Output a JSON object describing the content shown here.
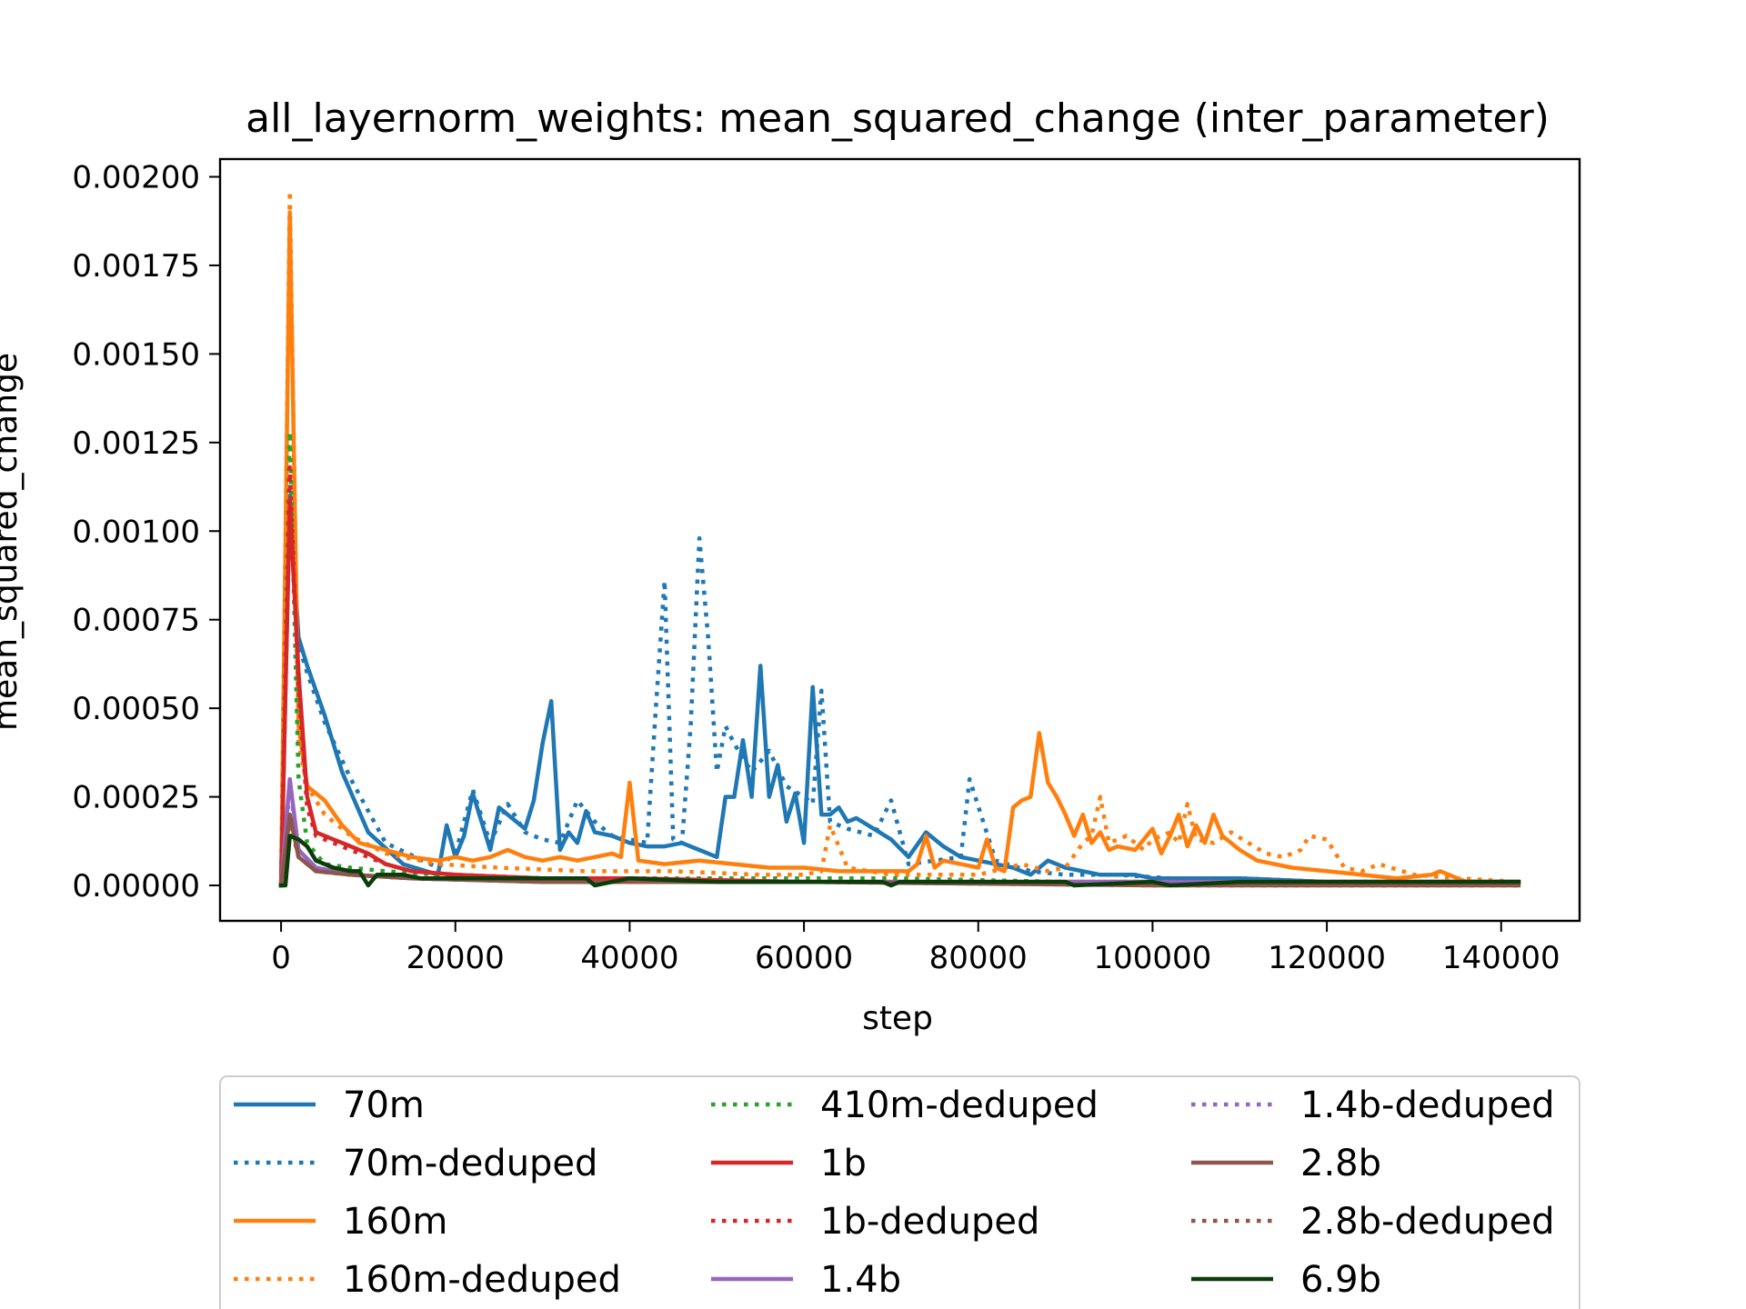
{
  "chart_data": {
    "type": "line",
    "title": "all_layernorm_weights: mean_squared_change (inter_parameter)",
    "xlabel": "step",
    "ylabel": "mean_squared_change",
    "xlim": [
      -7000,
      149000
    ],
    "ylim": [
      -0.0001,
      0.00205
    ],
    "x_ticks": [
      0,
      20000,
      40000,
      60000,
      80000,
      100000,
      120000,
      140000
    ],
    "x_tick_labels": [
      "0",
      "20000",
      "40000",
      "60000",
      "80000",
      "100000",
      "120000",
      "140000"
    ],
    "y_ticks": [
      0,
      0.00025,
      0.0005,
      0.00075,
      0.001,
      0.00125,
      0.0015,
      0.00175,
      0.002
    ],
    "y_tick_labels": [
      "0.00000",
      "0.00025",
      "0.00050",
      "0.00075",
      "0.00100",
      "0.00125",
      "0.00150",
      "0.00175",
      "0.00200"
    ],
    "grid": false,
    "legend_position": "below",
    "legend_columns": 3,
    "series": [
      {
        "name": "70m",
        "color": "#1f77b4",
        "style": "solid",
        "x": [
          0,
          1000,
          2000,
          3000,
          5000,
          7000,
          10000,
          14000,
          18000,
          19000,
          20000,
          21000,
          22000,
          23000,
          24000,
          25000,
          26000,
          28000,
          29000,
          30000,
          31000,
          32000,
          33000,
          34000,
          35000,
          36000,
          38000,
          40000,
          42000,
          44000,
          46000,
          48000,
          50000,
          51000,
          52000,
          53000,
          54000,
          55000,
          56000,
          57000,
          58000,
          59000,
          60000,
          61000,
          62000,
          63000,
          64000,
          65000,
          66000,
          68000,
          70000,
          72000,
          74000,
          76000,
          78000,
          80000,
          82000,
          84000,
          86000,
          88000,
          90000,
          92000,
          94000,
          96000,
          98000,
          100000,
          104000,
          110000,
          120000,
          130000,
          142000
        ],
        "y": [
          0.0,
          0.0011,
          0.0007,
          0.00062,
          0.00048,
          0.00032,
          0.00015,
          6e-05,
          3e-05,
          0.00017,
          8e-05,
          0.00014,
          0.00026,
          0.00018,
          0.0001,
          0.00022,
          0.0002,
          0.00016,
          0.00024,
          0.0004,
          0.00052,
          0.0001,
          0.00015,
          0.00012,
          0.00021,
          0.00015,
          0.00014,
          0.00012,
          0.00011,
          0.00011,
          0.00012,
          0.0001,
          8e-05,
          0.00025,
          0.00025,
          0.00041,
          0.00025,
          0.00062,
          0.00025,
          0.00034,
          0.00018,
          0.00026,
          0.00012,
          0.00056,
          0.0002,
          0.0002,
          0.00022,
          0.00018,
          0.00019,
          0.00016,
          0.00013,
          8e-05,
          0.00015,
          0.00011,
          8e-05,
          7e-05,
          6e-05,
          5e-05,
          3e-05,
          7e-05,
          5e-05,
          4e-05,
          3e-05,
          3e-05,
          3e-05,
          2e-05,
          2e-05,
          2e-05,
          1e-05,
          1e-05,
          1e-05
        ]
      },
      {
        "name": "70m-deduped",
        "color": "#1f77b4",
        "style": "dotted",
        "x": [
          0,
          1000,
          2000,
          3000,
          5000,
          8000,
          12000,
          18000,
          20000,
          22000,
          24000,
          26000,
          28000,
          30000,
          32000,
          34000,
          36000,
          38000,
          40000,
          42000,
          43000,
          44000,
          45000,
          46000,
          47000,
          48000,
          49000,
          50000,
          51000,
          52000,
          54000,
          56000,
          58000,
          60000,
          61000,
          62000,
          63000,
          65000,
          68000,
          70000,
          72000,
          75000,
          78000,
          79000,
          82000,
          86000,
          90000,
          96000,
          102000,
          110000,
          120000,
          130000,
          142000
        ],
        "y": [
          0.0,
          0.00115,
          0.00068,
          0.0006,
          0.00046,
          0.0003,
          0.00012,
          5e-05,
          9e-05,
          0.00027,
          0.00012,
          0.00023,
          0.00015,
          0.00013,
          0.00012,
          0.00024,
          0.00018,
          0.00014,
          0.00013,
          0.00012,
          0.0005,
          0.00086,
          0.00013,
          0.00012,
          0.00045,
          0.00098,
          0.0007,
          0.00032,
          0.00045,
          0.0004,
          0.00032,
          0.00038,
          0.00028,
          0.00025,
          0.00023,
          0.00055,
          0.00018,
          0.00016,
          0.00014,
          0.00024,
          6e-05,
          7e-05,
          8e-05,
          0.0003,
          7e-05,
          4e-05,
          3e-05,
          3e-05,
          2e-05,
          2e-05,
          1e-05,
          1e-05,
          1e-05
        ]
      },
      {
        "name": "160m",
        "color": "#ff7f0e",
        "style": "solid",
        "x": [
          0,
          1000,
          2000,
          3000,
          5000,
          7000,
          9000,
          12000,
          15000,
          18000,
          20000,
          22000,
          24000,
          26000,
          28000,
          30000,
          32000,
          34000,
          36000,
          38000,
          39000,
          40000,
          41000,
          44000,
          48000,
          52000,
          56000,
          60000,
          64000,
          68000,
          70000,
          72000,
          73000,
          74000,
          75000,
          76000,
          78000,
          80000,
          81000,
          82000,
          83000,
          84000,
          85000,
          86000,
          87000,
          88000,
          89000,
          90000,
          91000,
          92000,
          93000,
          94000,
          95000,
          96000,
          98000,
          100000,
          101000,
          102000,
          103000,
          104000,
          105000,
          106000,
          107000,
          108000,
          110000,
          112000,
          116000,
          120000,
          124000,
          128000,
          132000,
          133000,
          136000,
          142000
        ],
        "y": [
          0.0,
          0.0019,
          0.00045,
          0.00028,
          0.00024,
          0.00017,
          0.00012,
          0.0001,
          8e-05,
          7e-05,
          8e-05,
          7e-05,
          8e-05,
          0.0001,
          8e-05,
          7e-05,
          8e-05,
          7e-05,
          8e-05,
          9e-05,
          8e-05,
          0.00029,
          7e-05,
          6e-05,
          7e-05,
          6e-05,
          5e-05,
          5e-05,
          4e-05,
          4e-05,
          4e-05,
          4e-05,
          6e-05,
          0.00014,
          5e-05,
          7e-05,
          6e-05,
          5e-05,
          0.00013,
          5e-05,
          4e-05,
          0.00022,
          0.00024,
          0.00025,
          0.00043,
          0.00029,
          0.00025,
          0.0002,
          0.00014,
          0.0002,
          0.00012,
          0.00015,
          0.0001,
          0.00011,
          0.0001,
          0.00016,
          9e-05,
          0.00014,
          0.0002,
          0.00011,
          0.00017,
          0.00012,
          0.0002,
          0.00014,
          0.0001,
          7e-05,
          5e-05,
          4e-05,
          3e-05,
          2e-05,
          3e-05,
          4e-05,
          1e-05,
          1e-05
        ]
      },
      {
        "name": "160m-deduped",
        "color": "#ff7f0e",
        "style": "dotted",
        "x": [
          0,
          1000,
          2000,
          3000,
          5000,
          8000,
          12000,
          18000,
          25000,
          35000,
          45000,
          55000,
          60000,
          62000,
          63000,
          65000,
          70000,
          75000,
          80000,
          85000,
          88000,
          90000,
          92000,
          93000,
          94000,
          95000,
          97000,
          99000,
          100000,
          102000,
          103000,
          104000,
          105000,
          107000,
          109000,
          111000,
          113000,
          115000,
          117000,
          118000,
          120000,
          122000,
          124000,
          126000,
          130000,
          135000,
          142000
        ],
        "y": [
          0.0,
          0.00196,
          0.0004,
          0.00028,
          0.0002,
          0.00014,
          9e-05,
          6e-05,
          5e-05,
          4e-05,
          4e-05,
          3e-05,
          3e-05,
          4e-05,
          0.00017,
          5e-05,
          3e-05,
          3e-05,
          3e-05,
          6e-05,
          4e-05,
          5e-05,
          0.00012,
          0.00014,
          0.00025,
          0.00012,
          0.00014,
          0.0001,
          0.00013,
          0.00015,
          0.00012,
          0.00023,
          0.00013,
          0.00012,
          0.00015,
          0.00012,
          9e-05,
          8e-05,
          0.0001,
          0.00014,
          0.00013,
          5e-05,
          4e-05,
          6e-05,
          3e-05,
          2e-05,
          1e-05
        ]
      },
      {
        "name": "410m-deduped",
        "color": "#2ca02c",
        "style": "dotted",
        "x": [
          0,
          1000,
          2000,
          3000,
          5000,
          8000,
          12000,
          18000,
          25000,
          35000,
          50000,
          70000,
          90000,
          110000,
          130000,
          142000
        ],
        "y": [
          0.0,
          0.00128,
          0.0003,
          0.00012,
          6e-05,
          5e-05,
          4e-05,
          3e-05,
          2e-05,
          2e-05,
          2e-05,
          2e-05,
          1e-05,
          1e-05,
          1e-05,
          1e-05
        ]
      },
      {
        "name": "1b",
        "color": "#d62728",
        "style": "solid",
        "x": [
          0,
          1000,
          2000,
          3000,
          4000,
          6000,
          8000,
          10000,
          12000,
          15000,
          20000,
          30000,
          40000,
          60000,
          80000,
          100000,
          120000,
          142000
        ],
        "y": [
          0.0,
          0.00108,
          0.0006,
          0.00025,
          0.00015,
          0.00013,
          0.00011,
          9e-05,
          6e-05,
          4e-05,
          3e-05,
          2e-05,
          2e-05,
          1e-05,
          1e-05,
          1e-05,
          1e-05,
          1e-05
        ]
      },
      {
        "name": "1b-deduped",
        "color": "#d62728",
        "style": "dotted",
        "x": [
          0,
          1000,
          2000,
          3000,
          4000,
          6000,
          8000,
          10000,
          12000,
          15000,
          20000,
          30000,
          40000,
          60000,
          80000,
          100000,
          120000,
          142000
        ],
        "y": [
          0.0,
          0.00118,
          0.00055,
          0.00022,
          0.00014,
          0.00012,
          0.0001,
          8e-05,
          6e-05,
          4e-05,
          3e-05,
          2e-05,
          1e-05,
          1e-05,
          1e-05,
          1e-05,
          1e-05,
          1e-05
        ]
      },
      {
        "name": "1.4b",
        "color": "#9467bd",
        "style": "solid",
        "x": [
          0,
          1000,
          2000,
          4000,
          8000,
          15000,
          30000,
          60000,
          100000,
          142000
        ],
        "y": [
          0.0,
          0.0003,
          0.0001,
          5e-05,
          3e-05,
          2e-05,
          1e-05,
          1e-05,
          1e-05,
          1e-05
        ]
      },
      {
        "name": "1.4b-deduped",
        "color": "#9467bd",
        "style": "dotted",
        "x": [
          0,
          1000,
          2000,
          4000,
          8000,
          15000,
          30000,
          60000,
          100000,
          142000
        ],
        "y": [
          0.0,
          0.00028,
          0.0001,
          5e-05,
          3e-05,
          2e-05,
          1e-05,
          1e-05,
          1e-05,
          1e-05
        ]
      },
      {
        "name": "2.8b",
        "color": "#8c564b",
        "style": "solid",
        "x": [
          0,
          1000,
          2000,
          4000,
          8000,
          15000,
          30000,
          60000,
          100000,
          142000
        ],
        "y": [
          0.0,
          0.0002,
          8e-05,
          4e-05,
          3e-05,
          2e-05,
          1e-05,
          1e-05,
          0.0,
          0.0
        ]
      },
      {
        "name": "2.8b-deduped",
        "color": "#8c564b",
        "style": "dotted",
        "x": [
          0,
          1000,
          2000,
          4000,
          8000,
          15000,
          30000,
          60000,
          100000,
          142000
        ],
        "y": [
          0.0,
          0.00018,
          8e-05,
          4e-05,
          3e-05,
          2e-05,
          1e-05,
          1e-05,
          0.0,
          0.0
        ]
      },
      {
        "name": "6.9b",
        "color": "#0b3d0b",
        "style": "solid",
        "x": [
          0,
          500,
          1000,
          2000,
          3000,
          4000,
          6000,
          8000,
          9000,
          10000,
          11000,
          12000,
          14000,
          16000,
          20000,
          30000,
          35000,
          36000,
          40000,
          50000,
          60000,
          69000,
          70000,
          71000,
          80000,
          90000,
          91000,
          100000,
          102000,
          110000,
          120000,
          130000,
          142000
        ],
        "y": [
          0.0,
          0.0,
          0.00014,
          0.00013,
          0.00011,
          7e-05,
          5e-05,
          4e-05,
          4e-05,
          0.0,
          3e-05,
          3e-05,
          3e-05,
          2e-05,
          2e-05,
          2e-05,
          2e-05,
          0.0,
          2e-05,
          1e-05,
          1e-05,
          1e-05,
          0.0,
          1e-05,
          1e-05,
          1e-05,
          0.0,
          1e-05,
          0.0,
          1e-05,
          1e-05,
          1e-05,
          1e-05
        ]
      }
    ]
  }
}
